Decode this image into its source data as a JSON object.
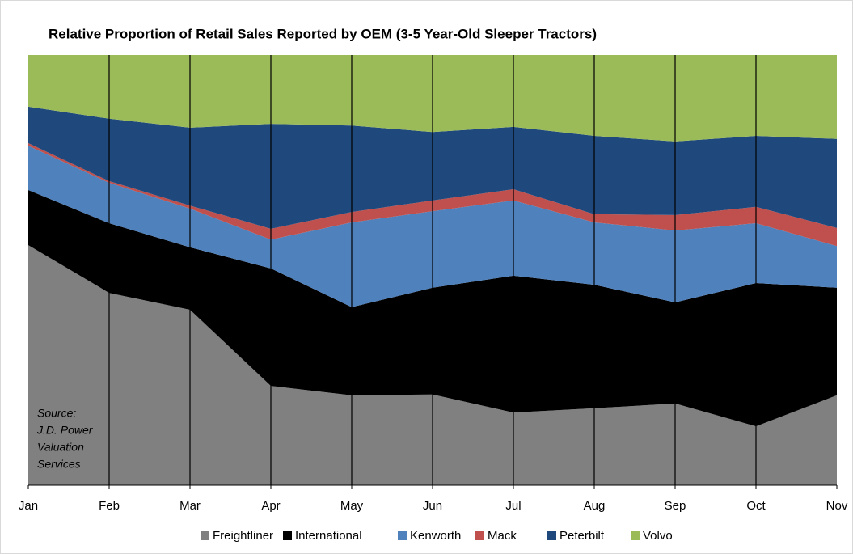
{
  "chart_data": {
    "type": "stacked_area",
    "title": "Relative Proportion of Retail Sales Reported by OEM (3-5 Year-Old Sleeper Tractors)",
    "annotation": [
      "Source:",
      "J.D. Power",
      "Valuation",
      "Services"
    ],
    "categories": [
      "Jan",
      "Feb",
      "Mar",
      "Apr",
      "May",
      "Jun",
      "Jul",
      "Aug",
      "Sep",
      "Oct",
      "Nov"
    ],
    "ylim": [
      0,
      100
    ],
    "grid": true,
    "legend": "bottom",
    "series": [
      {
        "name": "Freightliner",
        "color": "#808080",
        "values": [
          55.8,
          44.7,
          40.8,
          23.1,
          20.9,
          21.1,
          16.9,
          17.9,
          19.0,
          13.7,
          20.9
        ]
      },
      {
        "name": "International",
        "color": "#000000",
        "values": [
          12.8,
          16.2,
          14.5,
          27.3,
          20.5,
          24.8,
          31.8,
          28.7,
          23.5,
          33.3,
          25.0
        ]
      },
      {
        "name": "Kenworth",
        "color": "#4f81bd",
        "values": [
          10.3,
          9.4,
          9.0,
          6.7,
          19.7,
          17.8,
          17.5,
          14.5,
          16.7,
          13.9,
          9.7
        ]
      },
      {
        "name": "Mack",
        "color": "#c0504d",
        "values": [
          0.6,
          0.4,
          0.7,
          2.5,
          2.4,
          2.5,
          2.6,
          1.9,
          3.6,
          3.8,
          4.2
        ]
      },
      {
        "name": "Peterbilt",
        "color": "#1f497d",
        "values": [
          8.5,
          14.5,
          18.1,
          24.4,
          20.1,
          15.9,
          14.5,
          18.2,
          17.1,
          16.5,
          20.7
        ]
      },
      {
        "name": "Volvo",
        "color": "#9bbb59",
        "values": [
          12.0,
          14.8,
          16.9,
          16.0,
          16.4,
          17.9,
          16.7,
          18.8,
          20.1,
          18.8,
          19.5
        ]
      }
    ]
  }
}
